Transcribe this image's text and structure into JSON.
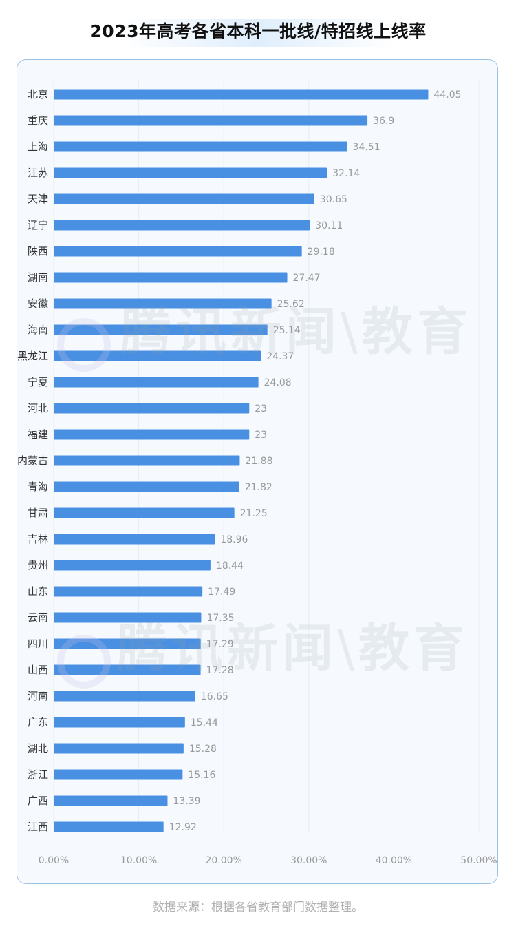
{
  "chart_data": {
    "type": "bar",
    "orientation": "horizontal",
    "title": "2023年高考各省本科一批线/特招线上线率",
    "categories": [
      "北京",
      "重庆",
      "上海",
      "江苏",
      "天津",
      "辽宁",
      "陕西",
      "湖南",
      "安徽",
      "海南",
      "黑龙江",
      "宁夏",
      "河北",
      "福建",
      "内蒙古",
      "青海",
      "甘肃",
      "吉林",
      "贵州",
      "山东",
      "云南",
      "四川",
      "山西",
      "河南",
      "广东",
      "湖北",
      "浙江",
      "广西",
      "江西"
    ],
    "values": [
      44.05,
      36.9,
      34.51,
      32.14,
      30.65,
      30.11,
      29.18,
      27.47,
      25.62,
      25.14,
      24.37,
      24.08,
      23,
      23,
      21.88,
      21.82,
      21.25,
      18.96,
      18.44,
      17.49,
      17.35,
      17.29,
      17.28,
      16.65,
      15.44,
      15.28,
      15.16,
      13.39,
      12.92
    ],
    "value_labels": [
      "44.05",
      "36.9",
      "34.51",
      "32.14",
      "30.65",
      "30.11",
      "29.18",
      "27.47",
      "25.62",
      "25.14",
      "24.37",
      "24.08",
      "23",
      "23",
      "21.88",
      "21.82",
      "21.25",
      "18.96",
      "18.44",
      "17.49",
      "17.35",
      "17.29",
      "17.28",
      "16.65",
      "15.44",
      "15.28",
      "15.16",
      "13.39",
      "12.92"
    ],
    "xlim": [
      0,
      50
    ],
    "x_ticks": [
      "0.00%",
      "10.00%",
      "20.00%",
      "30.00%",
      "40.00%",
      "50.00%"
    ],
    "grid": "vertical",
    "bar_color": "#4a90e2"
  },
  "watermark": {
    "text": "腾讯新闻",
    "suffix": "教育"
  },
  "source_text": "数据来源：根据各省教育部门数据整理。"
}
